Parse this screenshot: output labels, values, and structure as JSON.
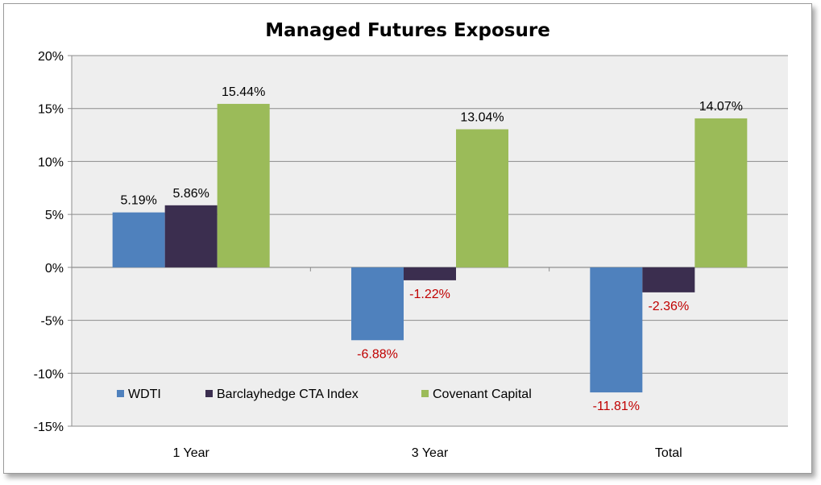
{
  "chart_data": {
    "type": "bar",
    "title": "Managed Futures Exposure",
    "xlabel": "",
    "ylabel": "",
    "categories": [
      "1 Year",
      "3 Year",
      "Total"
    ],
    "series": [
      {
        "name": "WDTI",
        "values": [
          5.19,
          -6.88,
          -11.81
        ],
        "labels": [
          "5.19%",
          "-6.88%",
          "-11.81%"
        ],
        "color": "#4F81BD"
      },
      {
        "name": "Barclayhedge CTA Index",
        "values": [
          5.86,
          -1.22,
          -2.36
        ],
        "labels": [
          "5.86%",
          "-1.22%",
          "-2.36%"
        ],
        "color": "#3B2E4F"
      },
      {
        "name": "Covenant Capital",
        "values": [
          15.44,
          13.04,
          14.07
        ],
        "labels": [
          "15.44%",
          "13.04%",
          "14.07%"
        ],
        "color": "#9BBB59"
      }
    ],
    "ylim": [
      -15,
      20
    ],
    "yticks": [
      20,
      15,
      10,
      5,
      0,
      -5,
      -10,
      -15
    ],
    "ytick_labels": [
      "20%",
      "15%",
      "10%",
      "5%",
      "0%",
      "-5%",
      "-10%",
      "-15%"
    ],
    "grid": true,
    "legend_position": "bottom-left, inside plot",
    "colors": {
      "plot_background": "#EEEEEE",
      "gridline": "#8C8C8C",
      "positive_label": "#000000",
      "negative_label": "#C00000"
    }
  }
}
